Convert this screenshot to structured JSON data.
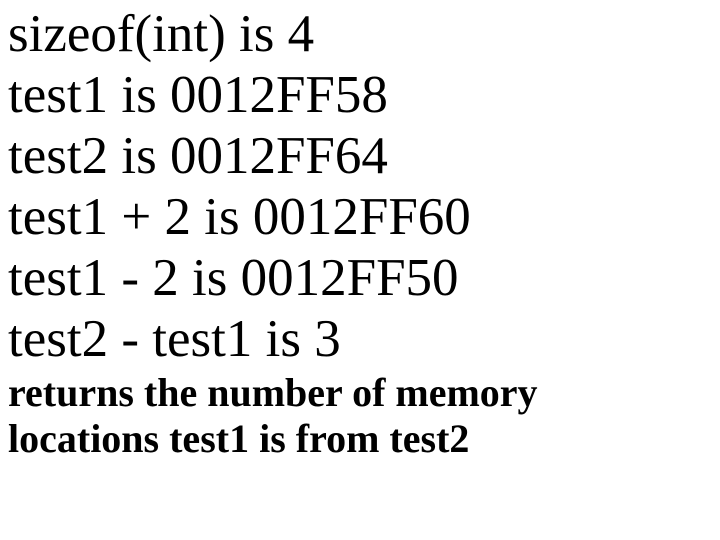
{
  "lines": {
    "l1": "sizeof(int) is 4",
    "l2": "test1 is 0012FF58",
    "l3": "test2 is 0012FF64",
    "l4": "test1 + 2 is 0012FF60",
    "l5": "test1 - 2 is 0012FF50",
    "l6": "test2 - test1 is 3"
  },
  "note": {
    "n1": "returns the number of memory",
    "n2": "locations test1 is from test2"
  },
  "colors": {
    "text": "#000000",
    "background": "#ffffff"
  },
  "typography": {
    "main_fontsize": 53,
    "note_fontsize": 40,
    "font_family": "Times New Roman"
  }
}
